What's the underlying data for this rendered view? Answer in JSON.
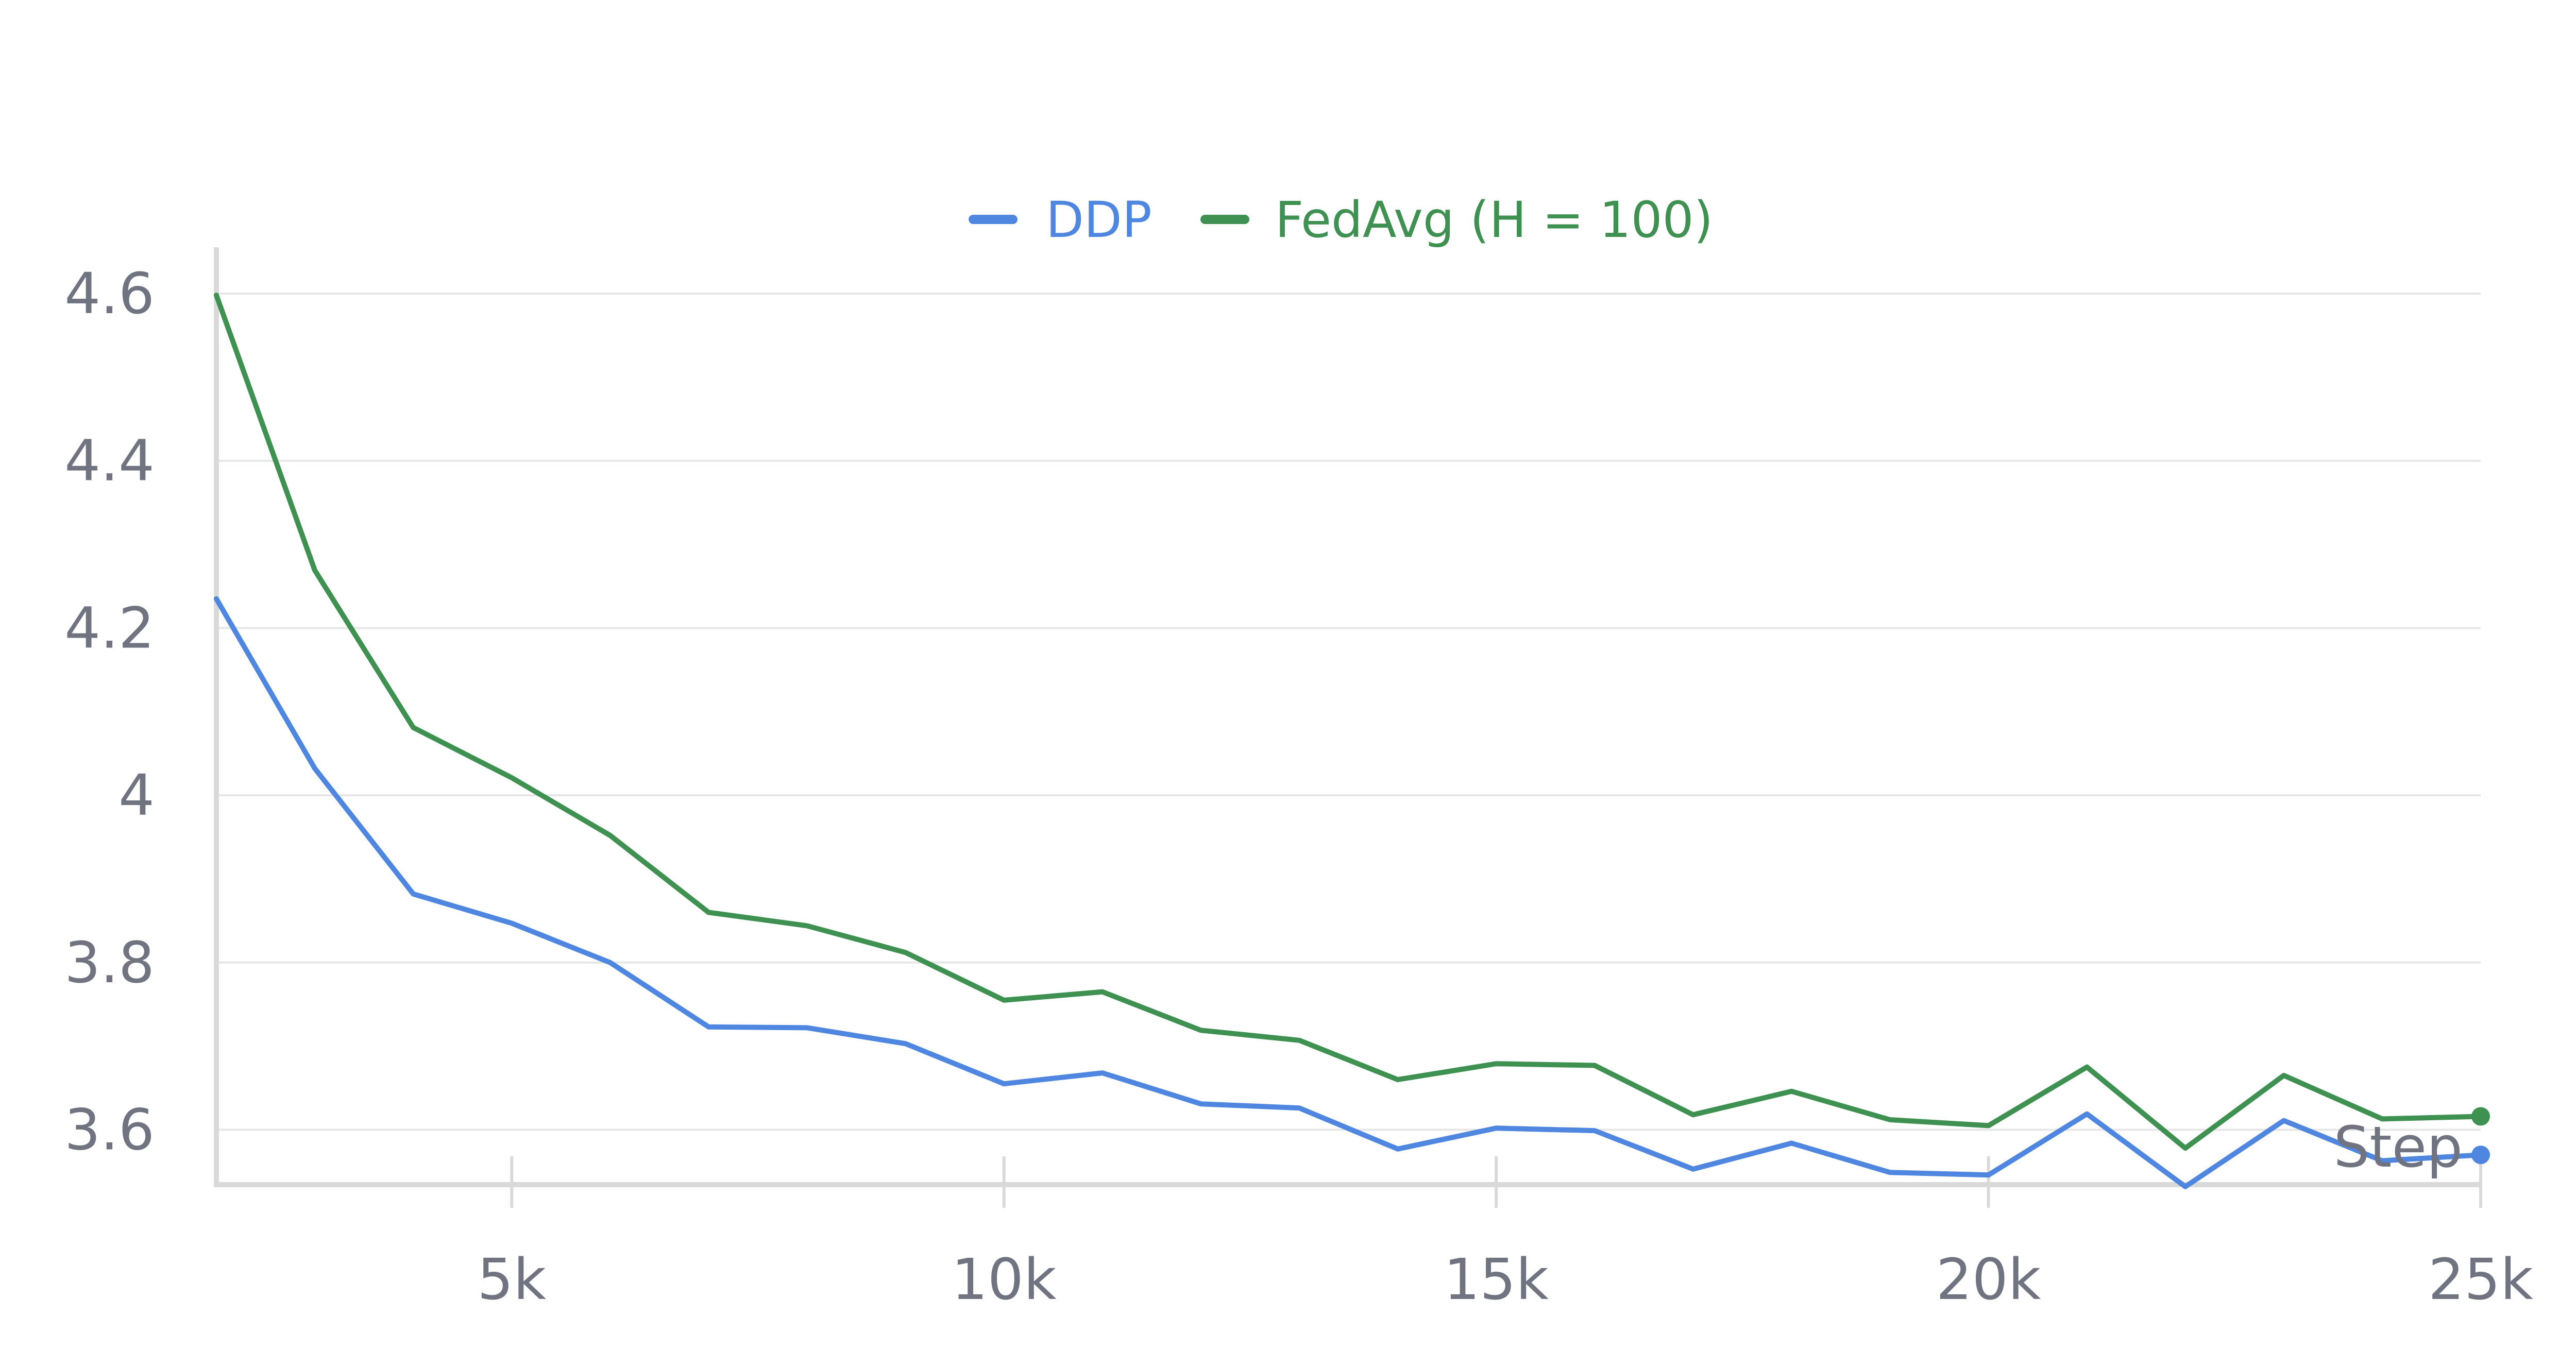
{
  "chart_data": {
    "type": "line",
    "xlabel": "Step",
    "x_ticks": [
      5000,
      10000,
      15000,
      20000,
      25000
    ],
    "x_tick_labels": [
      "5k",
      "10k",
      "15k",
      "20k",
      "25k"
    ],
    "xlim": [
      2000,
      25000
    ],
    "y_ticks": [
      3.6,
      3.8,
      4,
      4.2,
      4.4,
      4.6
    ],
    "y_tick_labels": [
      "3.6",
      "3.8",
      "4",
      "4.2",
      "4.4",
      "4.6"
    ],
    "ylim": [
      3.53,
      4.6
    ],
    "grid": true,
    "legend_position": "top-center",
    "x": [
      2000,
      3000,
      4000,
      5000,
      6000,
      7000,
      8000,
      9000,
      10000,
      11000,
      12000,
      13000,
      14000,
      15000,
      16000,
      17000,
      18000,
      19000,
      20000,
      21000,
      22000,
      23000,
      24000,
      25000
    ],
    "series": [
      {
        "name": "DDP",
        "color": "#4f86e0",
        "values": [
          4.235,
          4.032,
          3.882,
          3.847,
          3.8,
          3.723,
          3.722,
          3.703,
          3.655,
          3.668,
          3.631,
          3.626,
          3.577,
          3.602,
          3.599,
          3.553,
          3.584,
          3.549,
          3.546,
          3.619,
          3.532,
          3.611,
          3.563,
          3.57
        ]
      },
      {
        "name": "FedAvg (H = 100)",
        "color": "#3f9152",
        "values": [
          4.598,
          4.269,
          4.081,
          4.021,
          3.952,
          3.86,
          3.844,
          3.812,
          3.755,
          3.765,
          3.719,
          3.707,
          3.66,
          3.679,
          3.677,
          3.618,
          3.646,
          3.612,
          3.605,
          3.675,
          3.578,
          3.665,
          3.613,
          3.616
        ]
      }
    ]
  }
}
